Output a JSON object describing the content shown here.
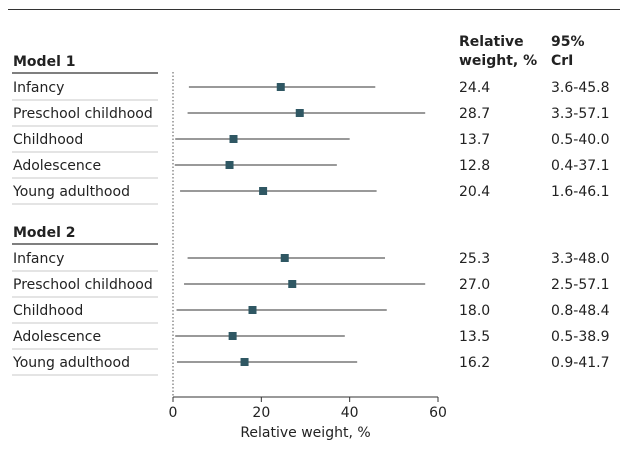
{
  "chart_data": {
    "type": "forest",
    "xlabel": "Relative weight, %",
    "xlim": [
      0,
      60
    ],
    "x_ticks": [
      "0",
      "20",
      "40",
      "60"
    ],
    "columns": [
      "Relative weight, %",
      "95% CrI"
    ],
    "column_header_lines": [
      [
        "Relative",
        "weight, %"
      ],
      [
        "95%",
        "CrI"
      ]
    ],
    "models": [
      {
        "name": "Model 1",
        "rows": [
          {
            "label": "Infancy",
            "estimate": 24.4,
            "lower": 3.6,
            "upper": 45.8,
            "weight_text": "24.4",
            "ci_text": "3.6-45.8"
          },
          {
            "label": "Preschool childhood",
            "estimate": 28.7,
            "lower": 3.3,
            "upper": 57.1,
            "weight_text": "28.7",
            "ci_text": "3.3-57.1"
          },
          {
            "label": "Childhood",
            "estimate": 13.7,
            "lower": 0.5,
            "upper": 40.0,
            "weight_text": "13.7",
            "ci_text": "0.5-40.0"
          },
          {
            "label": "Adolescence",
            "estimate": 12.8,
            "lower": 0.4,
            "upper": 37.1,
            "weight_text": "12.8",
            "ci_text": "0.4-37.1"
          },
          {
            "label": "Young adulthood",
            "estimate": 20.4,
            "lower": 1.6,
            "upper": 46.1,
            "weight_text": "20.4",
            "ci_text": "1.6-46.1"
          }
        ]
      },
      {
        "name": "Model 2",
        "rows": [
          {
            "label": "Infancy",
            "estimate": 25.3,
            "lower": 3.3,
            "upper": 48.0,
            "weight_text": "25.3",
            "ci_text": "3.3-48.0"
          },
          {
            "label": "Preschool childhood",
            "estimate": 27.0,
            "lower": 2.5,
            "upper": 57.1,
            "weight_text": "27.0",
            "ci_text": "2.5-57.1"
          },
          {
            "label": "Childhood",
            "estimate": 18.0,
            "lower": 0.8,
            "upper": 48.4,
            "weight_text": "18.0",
            "ci_text": "0.8-48.4"
          },
          {
            "label": "Adolescence",
            "estimate": 13.5,
            "lower": 0.5,
            "upper": 38.9,
            "weight_text": "13.5",
            "ci_text": "0.5-38.9"
          },
          {
            "label": "Young adulthood",
            "estimate": 16.2,
            "lower": 0.9,
            "upper": 41.7,
            "weight_text": "16.2",
            "ci_text": "0.9-41.7"
          }
        ]
      }
    ],
    "colors": {
      "marker": "#2f5763",
      "ci_line": "#333333",
      "separator": "#c8c8c8",
      "rule": "#333333"
    }
  }
}
